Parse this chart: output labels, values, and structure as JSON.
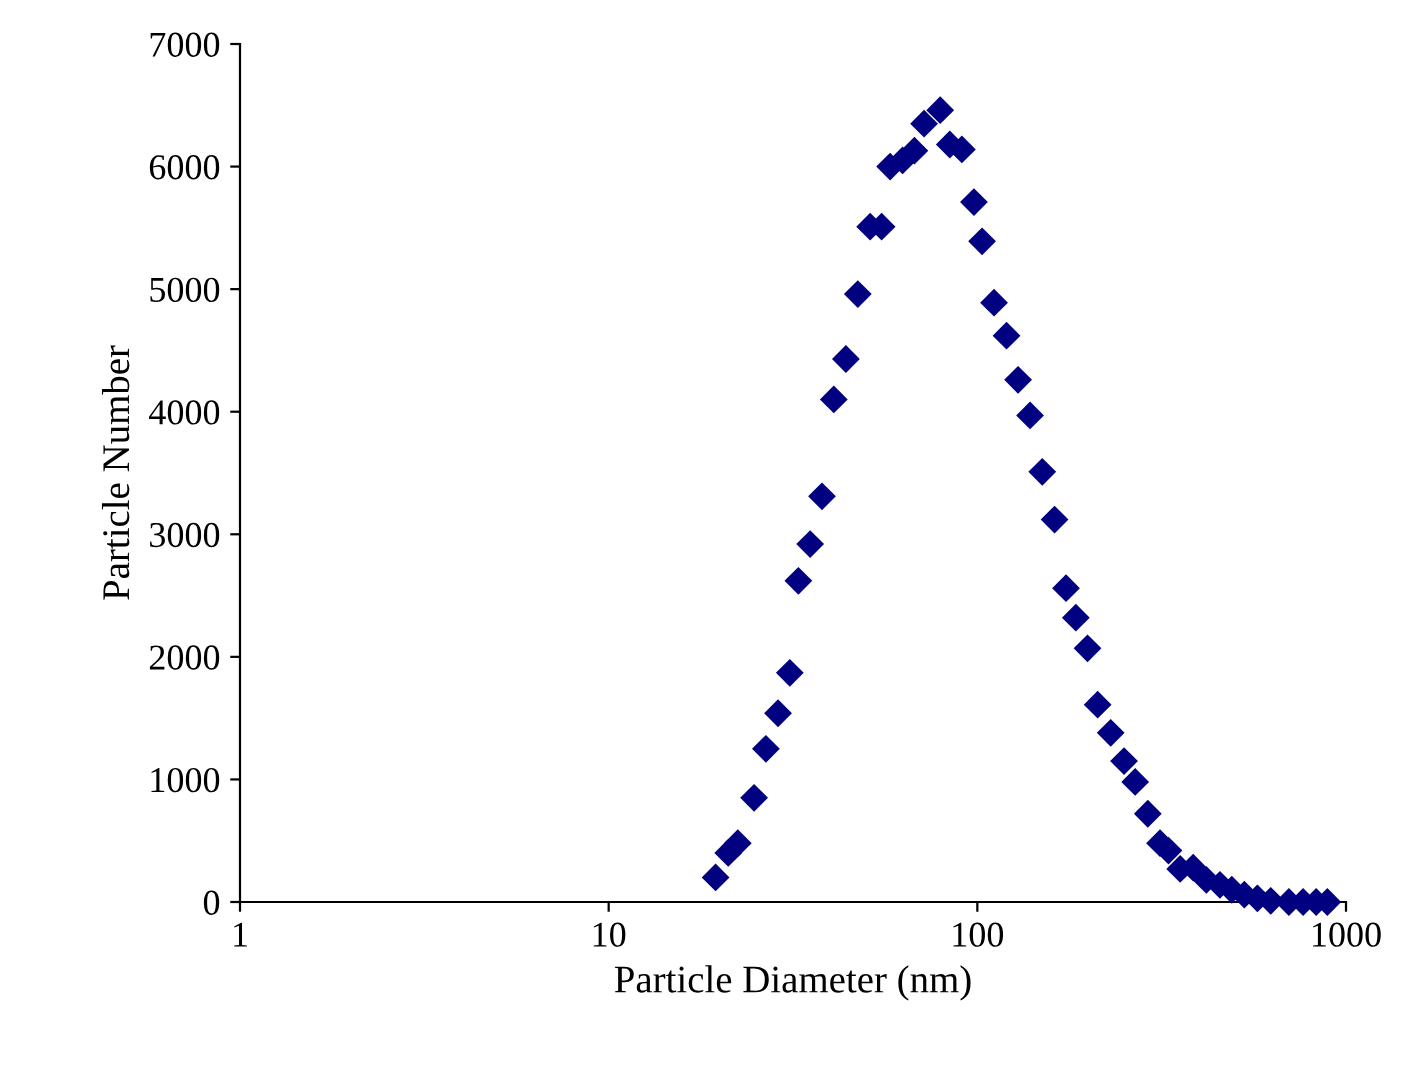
{
  "chart_data": {
    "type": "scatter",
    "xlabel": "Particle Diameter (nm)",
    "ylabel": "Particle Number",
    "log": "x",
    "marker": "diamond",
    "grid": false,
    "legend": false,
    "xlim": [
      1,
      1000
    ],
    "xticks": [
      1,
      10,
      100,
      1000
    ],
    "ylim": [
      0,
      7000
    ],
    "yticks": [
      0,
      1000,
      2000,
      3000,
      4000,
      5000,
      6000,
      7000
    ],
    "series": [
      {
        "color": "#000080",
        "x": [
          19.5,
          21.1,
          22.4,
          24.8,
          26.7,
          28.8,
          31,
          32.7,
          35.2,
          37.9,
          40.8,
          44,
          47.4,
          51.2,
          55,
          58,
          62.7,
          67.5,
          71.7,
          76,
          79.3,
          84.2,
          90.8,
          97.9,
          103,
          111,
          120,
          129,
          139,
          150,
          162,
          174,
          185,
          199,
          212,
          230,
          250,
          268,
          290,
          313,
          330,
          355,
          385,
          418,
          455,
          490,
          530,
          575,
          625,
          700,
          765,
          830,
          890
        ],
        "values": [
          200,
          400,
          480,
          850,
          1250,
          1540,
          1870,
          2620,
          2920,
          3310,
          4100,
          4430,
          4960,
          5510,
          5510,
          6000,
          6050,
          6130,
          6350,
          null,
          6460,
          6180,
          6140,
          5710,
          5390,
          4890,
          4620,
          4260,
          3970,
          3510,
          3120,
          2560,
          2320,
          2070,
          1610,
          1380,
          1150,
          980,
          720,
          480,
          420,
          270,
          280,
          180,
          140,
          100,
          60,
          30,
          10,
          0,
          0,
          0,
          0
        ]
      }
    ]
  }
}
